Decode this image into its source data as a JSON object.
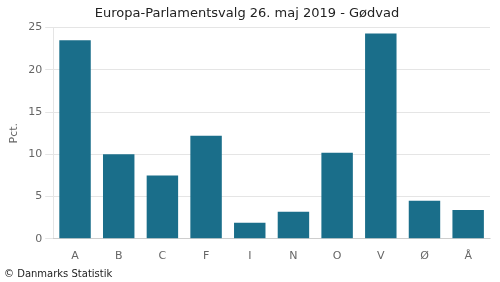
{
  "chart_data": {
    "type": "bar",
    "title": "Europa-Parlamentsvalg 26. maj 2019 - Gødvad",
    "categories": [
      "A",
      "B",
      "C",
      "F",
      "I",
      "N",
      "O",
      "V",
      "Ø",
      "Å"
    ],
    "values": [
      23.5,
      10.0,
      7.5,
      12.2,
      1.9,
      3.2,
      10.2,
      24.3,
      4.5,
      3.4
    ],
    "color": "#1a6e8a",
    "ylabel": "Pct.",
    "ylim": [
      0,
      25
    ],
    "yticks": [
      0,
      5,
      10,
      15,
      20,
      25
    ],
    "grid": true,
    "annotations": [
      "© Danmarks Statistik"
    ]
  }
}
